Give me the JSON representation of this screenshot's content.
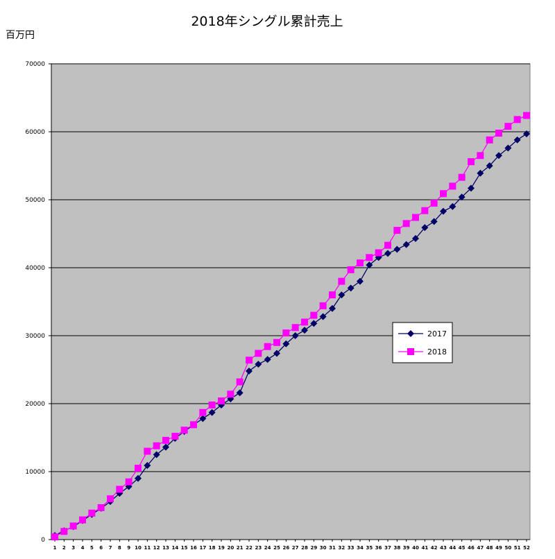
{
  "chart_data": {
    "type": "line",
    "title": "2018年シングル累計売上",
    "ylabel": "百万円",
    "xlabel": "",
    "ylim": [
      0,
      70000
    ],
    "yticks": [
      0,
      10000,
      20000,
      30000,
      40000,
      50000,
      60000,
      70000
    ],
    "x": [
      1,
      2,
      3,
      4,
      5,
      6,
      7,
      8,
      9,
      10,
      11,
      12,
      13,
      14,
      15,
      16,
      17,
      18,
      19,
      20,
      21,
      22,
      23,
      24,
      25,
      26,
      27,
      28,
      29,
      30,
      31,
      32,
      33,
      34,
      35,
      36,
      37,
      38,
      39,
      40,
      41,
      42,
      43,
      44,
      45,
      46,
      47,
      48,
      49,
      50,
      51,
      52
    ],
    "grid": true,
    "legend_position": "right",
    "series": [
      {
        "name": "2017",
        "color": "#000066",
        "marker": "diamond",
        "values": [
          600,
          1300,
          1900,
          2800,
          3700,
          4600,
          5600,
          6800,
          7800,
          9000,
          10900,
          12500,
          13600,
          14900,
          15900,
          16900,
          17800,
          18700,
          19800,
          20700,
          21600,
          24800,
          25800,
          26500,
          27400,
          28800,
          30000,
          30800,
          31800,
          32800,
          34000,
          36000,
          37000,
          38000,
          40400,
          41500,
          42100,
          42700,
          43400,
          44300,
          45900,
          46800,
          48300,
          49000,
          50400,
          51700,
          53900,
          55000,
          56500,
          57600,
          58800,
          59700
        ]
      },
      {
        "name": "2018",
        "color": "#FF00FF",
        "marker": "square",
        "values": [
          400,
          1200,
          2000,
          2900,
          3900,
          4700,
          6000,
          7400,
          8500,
          10500,
          13000,
          13800,
          14600,
          15200,
          16100,
          16900,
          18700,
          19800,
          20400,
          21400,
          23200,
          26400,
          27400,
          28400,
          29000,
          30400,
          31200,
          32000,
          33000,
          34400,
          36000,
          38000,
          39700,
          40700,
          41500,
          42200,
          43300,
          45500,
          46500,
          47400,
          48400,
          49500,
          50900,
          52000,
          53300,
          55600,
          56500,
          58800,
          59800,
          60800,
          61800,
          62400
        ]
      }
    ]
  }
}
